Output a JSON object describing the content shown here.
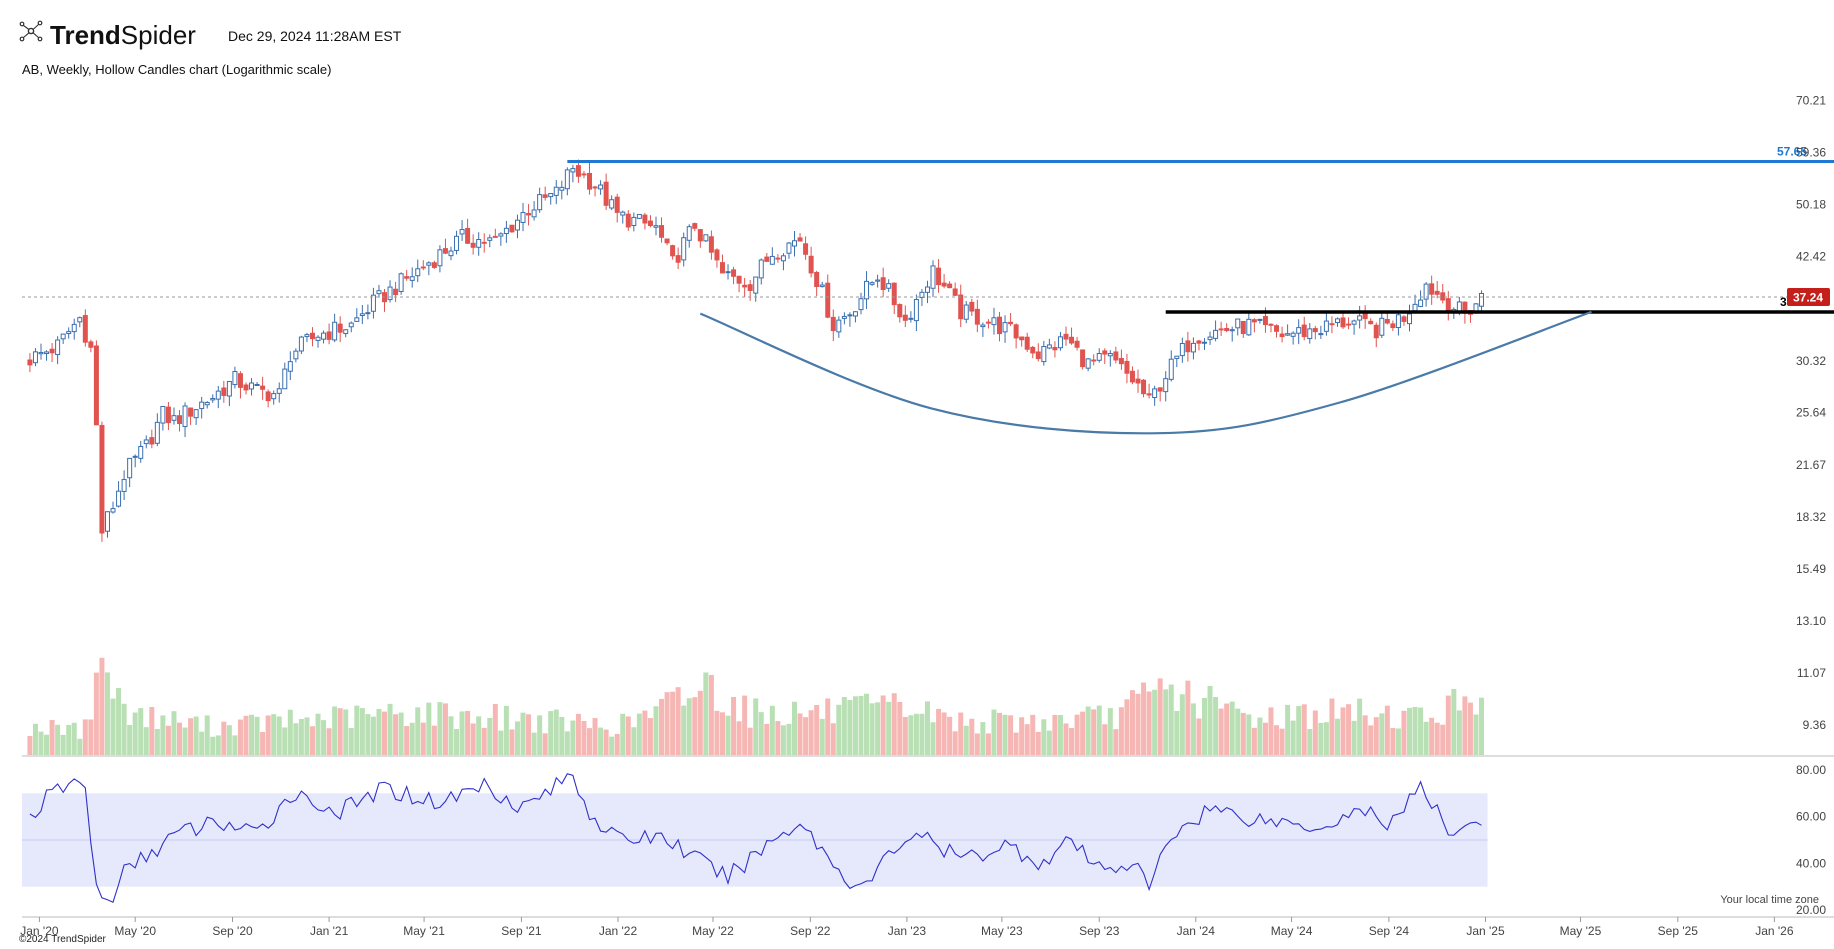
{
  "header": {
    "brand_bold": "Trend",
    "brand_regular": "Spider",
    "timestamp": "Dec 29, 2024 11:28AM EST",
    "logo_icon": "trendspider-logo-icon"
  },
  "subtitle": "AB, Weekly, Hollow Candles chart (Logarithmic scale)",
  "footer": {
    "copyright": "©2024 TrendSpider",
    "timezone_note": "Your local time zone"
  },
  "colors": {
    "up": "#3a6fb0",
    "down": "#e0534f",
    "resistance": "#1f78d1",
    "support": "#000000",
    "arc": "#4a7aa8",
    "rsi_line": "#3030c8",
    "rsi_band": "#e6e9fb",
    "vol_up": "#b9e0b4",
    "vol_down": "#f6b7b4",
    "price_badge": "#c41f1a"
  },
  "chart_data": {
    "type": "candlestick",
    "ticker": "AB",
    "interval": "Weekly",
    "scale": "log",
    "y_ticks": [
      "70.21",
      "59.36",
      "50.18",
      "42.42",
      "35.48",
      "30.32",
      "25.64",
      "21.67",
      "18.32",
      "15.49",
      "13.10",
      "11.07",
      "9.36"
    ],
    "ylim": [
      8.5,
      75
    ],
    "x_ticks": [
      "Jan '20",
      "May '20",
      "Sep '20",
      "Jan '21",
      "May '21",
      "Sep '21",
      "Jan '22",
      "May '22",
      "Sep '22",
      "Jan '23",
      "May '23",
      "Sep '23",
      "Jan '24",
      "May '24",
      "Sep '24",
      "Jan '25",
      "May '25",
      "Sep '25",
      "Jan '26"
    ],
    "xlim": [
      "2019-12-10",
      "2026-02-15"
    ],
    "last_price": "37.24",
    "annotations": {
      "resistance": {
        "label": "57.65",
        "value": 57.65,
        "from": "2021-10-29"
      },
      "support": {
        "label": "35.48",
        "value": 35.48,
        "from": "2023-11-24"
      },
      "rounded_bottom": [
        [
          "2022-04-15",
          35.3
        ],
        [
          "2023-02-01",
          26.0
        ],
        [
          "2023-11-15",
          24.0
        ],
        [
          "2024-07-01",
          26.5
        ],
        [
          "2025-05-15",
          35.5
        ]
      ]
    },
    "close_path": [
      [
        "2019-12-20",
        30.5
      ],
      [
        "2020-01-24",
        31.8
      ],
      [
        "2020-02-21",
        34.8
      ],
      [
        "2020-03-06",
        31.5
      ],
      [
        "2020-03-20",
        17.5
      ],
      [
        "2020-04-03",
        19.0
      ],
      [
        "2020-04-17",
        21.0
      ],
      [
        "2020-05-15",
        23.0
      ],
      [
        "2020-06-05",
        25.5
      ],
      [
        "2020-06-19",
        25.0
      ],
      [
        "2020-08-07",
        27.0
      ],
      [
        "2020-09-04",
        28.5
      ],
      [
        "2020-10-02",
        27.5
      ],
      [
        "2020-10-30",
        27.2
      ],
      [
        "2020-11-13",
        31.0
      ],
      [
        "2020-12-18",
        33.0
      ],
      [
        "2021-01-29",
        34.0
      ],
      [
        "2021-02-26",
        36.5
      ],
      [
        "2021-04-16",
        40.0
      ],
      [
        "2021-06-18",
        45.0
      ],
      [
        "2021-07-30",
        44.5
      ],
      [
        "2021-09-10",
        49.5
      ],
      [
        "2021-10-15",
        52.0
      ],
      [
        "2021-11-05",
        56.5
      ],
      [
        "2021-12-03",
        53.5
      ],
      [
        "2021-12-31",
        48.5
      ],
      [
        "2022-02-18",
        46.5
      ],
      [
        "2022-03-11",
        41.5
      ],
      [
        "2022-04-08",
        47.0
      ],
      [
        "2022-05-13",
        40.0
      ],
      [
        "2022-06-17",
        39.0
      ],
      [
        "2022-07-15",
        43.0
      ],
      [
        "2022-08-19",
        45.0
      ],
      [
        "2022-09-30",
        34.0
      ],
      [
        "2022-10-21",
        35.5
      ],
      [
        "2022-11-25",
        40.0
      ],
      [
        "2022-12-30",
        34.5
      ],
      [
        "2023-02-03",
        40.5
      ],
      [
        "2023-03-10",
        35.5
      ],
      [
        "2023-04-14",
        34.5
      ],
      [
        "2023-05-19",
        33.0
      ],
      [
        "2023-06-16",
        31.0
      ],
      [
        "2023-07-21",
        32.5
      ],
      [
        "2023-08-18",
        30.0
      ],
      [
        "2023-09-15",
        30.5
      ],
      [
        "2023-10-20",
        28.0
      ],
      [
        "2023-11-03",
        26.5
      ],
      [
        "2023-11-24",
        29.0
      ],
      [
        "2023-12-29",
        32.8
      ],
      [
        "2024-02-02",
        33.5
      ],
      [
        "2024-03-08",
        34.0
      ],
      [
        "2024-04-19",
        33.0
      ],
      [
        "2024-05-31",
        33.5
      ],
      [
        "2024-07-12",
        34.5
      ],
      [
        "2024-08-16",
        33.5
      ],
      [
        "2024-09-20",
        35.0
      ],
      [
        "2024-10-18",
        38.8
      ],
      [
        "2024-11-15",
        36.5
      ],
      [
        "2024-12-06",
        35.2
      ],
      [
        "2024-12-27",
        37.24
      ]
    ],
    "volume": [
      [
        "2019-12-20",
        6
      ],
      [
        "2020-02-21",
        5
      ],
      [
        "2020-03-13",
        14
      ],
      [
        "2020-03-20",
        22
      ],
      [
        "2020-03-27",
        18
      ],
      [
        "2020-04-10",
        11
      ],
      [
        "2020-05-15",
        8
      ],
      [
        "2020-08-07",
        6
      ],
      [
        "2020-10-30",
        7
      ],
      [
        "2021-01-29",
        8
      ],
      [
        "2021-04-16",
        9
      ],
      [
        "2021-07-30",
        8
      ],
      [
        "2021-10-15",
        7
      ],
      [
        "2021-12-31",
        6
      ],
      [
        "2022-02-18",
        9
      ],
      [
        "2022-04-22",
        15
      ],
      [
        "2022-06-17",
        9
      ],
      [
        "2022-09-30",
        9
      ],
      [
        "2022-12-30",
        10
      ],
      [
        "2023-03-10",
        7
      ],
      [
        "2023-06-16",
        7
      ],
      [
        "2023-09-15",
        8
      ],
      [
        "2023-11-24",
        14
      ],
      [
        "2024-03-08",
        8
      ],
      [
        "2024-07-12",
        9
      ],
      [
        "2024-10-18",
        8
      ],
      [
        "2024-12-27",
        13
      ]
    ],
    "rsi": {
      "levels": [
        "80.00",
        "60.00",
        "40.00",
        "20.00"
      ],
      "band": [
        30,
        70
      ],
      "path": [
        [
          "2019-12-20",
          60
        ],
        [
          "2020-01-17",
          70
        ],
        [
          "2020-02-14",
          75
        ],
        [
          "2020-02-28",
          72
        ],
        [
          "2020-03-13",
          30
        ],
        [
          "2020-03-27",
          22
        ],
        [
          "2020-04-17",
          36
        ],
        [
          "2020-05-22",
          45
        ],
        [
          "2020-06-19",
          52
        ],
        [
          "2020-08-14",
          58
        ],
        [
          "2020-10-02",
          52
        ],
        [
          "2020-11-13",
          70
        ],
        [
          "2021-01-15",
          62
        ],
        [
          "2021-03-12",
          72
        ],
        [
          "2021-05-21",
          66
        ],
        [
          "2021-07-16",
          74
        ],
        [
          "2021-09-03",
          64
        ],
        [
          "2021-11-05",
          78
        ],
        [
          "2021-11-26",
          62
        ],
        [
          "2021-12-31",
          50
        ],
        [
          "2022-02-25",
          52
        ],
        [
          "2022-04-01",
          44
        ],
        [
          "2022-04-29",
          38
        ],
        [
          "2022-05-20",
          34
        ],
        [
          "2022-07-15",
          50
        ],
        [
          "2022-08-19",
          58
        ],
        [
          "2022-10-14",
          34
        ],
        [
          "2022-11-11",
          30
        ],
        [
          "2022-12-09",
          44
        ],
        [
          "2023-01-13",
          54
        ],
        [
          "2023-02-10",
          46
        ],
        [
          "2023-03-17",
          42
        ],
        [
          "2023-05-05",
          48
        ],
        [
          "2023-06-23",
          40
        ],
        [
          "2023-07-28",
          50
        ],
        [
          "2023-08-25",
          38
        ],
        [
          "2023-10-13",
          40
        ],
        [
          "2023-11-03",
          30
        ],
        [
          "2023-12-01",
          52
        ],
        [
          "2024-01-19",
          64
        ],
        [
          "2024-03-01",
          60
        ],
        [
          "2024-04-12",
          58
        ],
        [
          "2024-06-07",
          56
        ],
        [
          "2024-08-02",
          64
        ],
        [
          "2024-08-23",
          55
        ],
        [
          "2024-10-11",
          72
        ],
        [
          "2024-11-15",
          54
        ],
        [
          "2024-12-27",
          59
        ]
      ]
    }
  }
}
